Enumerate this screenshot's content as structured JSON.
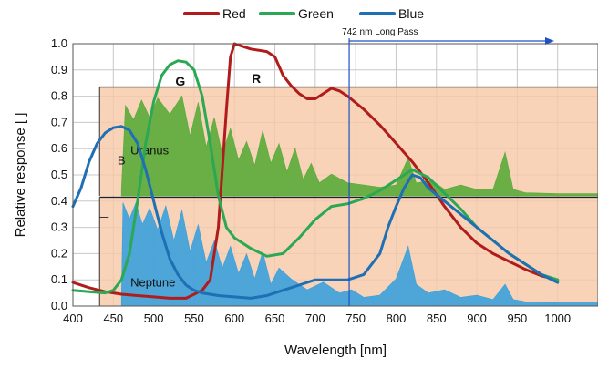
{
  "chart_data": {
    "type": "line",
    "title": "",
    "xlabel": "Wavelength [nm]",
    "ylabel": "Relative response [ ]",
    "xlim": [
      400,
      1050
    ],
    "ylim": [
      0,
      1.0
    ],
    "x_ticks": [
      400,
      450,
      500,
      550,
      600,
      650,
      700,
      750,
      800,
      850,
      900,
      950,
      1000
    ],
    "y_ticks": [
      "0.0",
      "0.1",
      "0.2",
      "0.3",
      "0.4",
      "0.5",
      "0.6",
      "0.7",
      "0.8",
      "0.9",
      "1.0"
    ],
    "grid": true,
    "legend_position": "top-center",
    "series": [
      {
        "name": "Red",
        "color": "#b01c1c",
        "points": [
          [
            400,
            0.09
          ],
          [
            420,
            0.07
          ],
          [
            440,
            0.055
          ],
          [
            460,
            0.045
          ],
          [
            480,
            0.04
          ],
          [
            500,
            0.035
          ],
          [
            520,
            0.03
          ],
          [
            540,
            0.03
          ],
          [
            560,
            0.06
          ],
          [
            570,
            0.1
          ],
          [
            580,
            0.3
          ],
          [
            590,
            0.75
          ],
          [
            595,
            0.95
          ],
          [
            600,
            1.0
          ],
          [
            610,
            0.99
          ],
          [
            620,
            0.98
          ],
          [
            640,
            0.97
          ],
          [
            650,
            0.95
          ],
          [
            660,
            0.88
          ],
          [
            670,
            0.84
          ],
          [
            680,
            0.81
          ],
          [
            690,
            0.79
          ],
          [
            700,
            0.79
          ],
          [
            710,
            0.81
          ],
          [
            720,
            0.83
          ],
          [
            730,
            0.82
          ],
          [
            740,
            0.8
          ],
          [
            760,
            0.75
          ],
          [
            780,
            0.69
          ],
          [
            800,
            0.62
          ],
          [
            820,
            0.55
          ],
          [
            840,
            0.47
          ],
          [
            860,
            0.38
          ],
          [
            880,
            0.3
          ],
          [
            900,
            0.24
          ],
          [
            920,
            0.2
          ],
          [
            940,
            0.17
          ],
          [
            960,
            0.14
          ],
          [
            980,
            0.115
          ],
          [
            1000,
            0.1
          ]
        ]
      },
      {
        "name": "Green",
        "color": "#2aa853",
        "points": [
          [
            400,
            0.06
          ],
          [
            420,
            0.055
          ],
          [
            440,
            0.05
          ],
          [
            450,
            0.06
          ],
          [
            460,
            0.1
          ],
          [
            470,
            0.2
          ],
          [
            480,
            0.4
          ],
          [
            490,
            0.62
          ],
          [
            500,
            0.78
          ],
          [
            510,
            0.88
          ],
          [
            520,
            0.92
          ],
          [
            530,
            0.935
          ],
          [
            540,
            0.93
          ],
          [
            550,
            0.9
          ],
          [
            560,
            0.8
          ],
          [
            570,
            0.62
          ],
          [
            580,
            0.42
          ],
          [
            590,
            0.3
          ],
          [
            600,
            0.26
          ],
          [
            620,
            0.22
          ],
          [
            640,
            0.19
          ],
          [
            660,
            0.2
          ],
          [
            680,
            0.26
          ],
          [
            700,
            0.33
          ],
          [
            720,
            0.38
          ],
          [
            740,
            0.39
          ],
          [
            760,
            0.41
          ],
          [
            780,
            0.44
          ],
          [
            800,
            0.48
          ],
          [
            820,
            0.52
          ],
          [
            840,
            0.49
          ],
          [
            860,
            0.43
          ],
          [
            880,
            0.37
          ],
          [
            900,
            0.3
          ],
          [
            920,
            0.25
          ],
          [
            940,
            0.2
          ],
          [
            960,
            0.16
          ],
          [
            980,
            0.12
          ],
          [
            1000,
            0.1
          ]
        ]
      },
      {
        "name": "Blue",
        "color": "#1f6fb5",
        "points": [
          [
            400,
            0.38
          ],
          [
            410,
            0.45
          ],
          [
            420,
            0.55
          ],
          [
            430,
            0.62
          ],
          [
            440,
            0.66
          ],
          [
            450,
            0.68
          ],
          [
            460,
            0.685
          ],
          [
            470,
            0.67
          ],
          [
            480,
            0.62
          ],
          [
            490,
            0.52
          ],
          [
            500,
            0.4
          ],
          [
            510,
            0.28
          ],
          [
            520,
            0.18
          ],
          [
            530,
            0.12
          ],
          [
            540,
            0.08
          ],
          [
            550,
            0.06
          ],
          [
            560,
            0.05
          ],
          [
            580,
            0.04
          ],
          [
            600,
            0.035
          ],
          [
            620,
            0.03
          ],
          [
            640,
            0.04
          ],
          [
            660,
            0.06
          ],
          [
            680,
            0.08
          ],
          [
            700,
            0.1
          ],
          [
            720,
            0.1
          ],
          [
            740,
            0.1
          ],
          [
            760,
            0.12
          ],
          [
            780,
            0.2
          ],
          [
            790,
            0.3
          ],
          [
            800,
            0.38
          ],
          [
            810,
            0.45
          ],
          [
            820,
            0.5
          ],
          [
            830,
            0.49
          ],
          [
            840,
            0.45
          ],
          [
            860,
            0.4
          ],
          [
            880,
            0.35
          ],
          [
            900,
            0.3
          ],
          [
            920,
            0.25
          ],
          [
            940,
            0.2
          ],
          [
            960,
            0.16
          ],
          [
            980,
            0.12
          ],
          [
            1000,
            0.09
          ]
        ]
      }
    ],
    "annotations": {
      "filter_label": "742 nm Long Pass",
      "filter_wavelength": 742,
      "channel_labels": [
        {
          "text": "G",
          "x": 533,
          "y": 0.84
        },
        {
          "text": "R",
          "x": 627,
          "y": 0.85
        },
        {
          "text": "B",
          "x": 460,
          "y": 0.54
        }
      ],
      "insets": [
        {
          "label": "Uranus",
          "color": "#5aaa3a",
          "panel_x": [
            433,
            1050
          ],
          "panel_y": [
            0.42,
            0.835
          ],
          "spectrum": [
            [
              460,
              0.06
            ],
            [
              465,
              0.83
            ],
            [
              475,
              0.7
            ],
            [
              485,
              0.88
            ],
            [
              495,
              0.72
            ],
            [
              505,
              0.9
            ],
            [
              520,
              0.75
            ],
            [
              535,
              0.92
            ],
            [
              545,
              0.55
            ],
            [
              555,
              0.86
            ],
            [
              565,
              0.45
            ],
            [
              575,
              0.72
            ],
            [
              585,
              0.38
            ],
            [
              595,
              0.62
            ],
            [
              605,
              0.33
            ],
            [
              615,
              0.5
            ],
            [
              625,
              0.28
            ],
            [
              635,
              0.6
            ],
            [
              645,
              0.3
            ],
            [
              655,
              0.48
            ],
            [
              665,
              0.22
            ],
            [
              675,
              0.44
            ],
            [
              685,
              0.15
            ],
            [
              695,
              0.3
            ],
            [
              705,
              0.12
            ],
            [
              720,
              0.2
            ],
            [
              740,
              0.12
            ],
            [
              760,
              0.1
            ],
            [
              780,
              0.08
            ],
            [
              800,
              0.1
            ],
            [
              815,
              0.35
            ],
            [
              825,
              0.12
            ],
            [
              845,
              0.14
            ],
            [
              860,
              0.06
            ],
            [
              880,
              0.1
            ],
            [
              900,
              0.06
            ],
            [
              920,
              0.06
            ],
            [
              935,
              0.4
            ],
            [
              945,
              0.06
            ],
            [
              960,
              0.03
            ],
            [
              1000,
              0.02
            ],
            [
              1050,
              0.02
            ]
          ]
        },
        {
          "label": "Neptune",
          "color": "#3aa0dc",
          "panel_x": [
            433,
            1050
          ],
          "panel_y": [
            0.0,
            0.415
          ],
          "spectrum": [
            [
              460,
              0.05
            ],
            [
              462,
              0.95
            ],
            [
              470,
              0.8
            ],
            [
              478,
              0.95
            ],
            [
              486,
              0.75
            ],
            [
              495,
              0.9
            ],
            [
              505,
              0.7
            ],
            [
              515,
              0.92
            ],
            [
              525,
              0.6
            ],
            [
              535,
              0.88
            ],
            [
              545,
              0.5
            ],
            [
              555,
              0.75
            ],
            [
              565,
              0.4
            ],
            [
              575,
              0.6
            ],
            [
              585,
              0.35
            ],
            [
              595,
              0.55
            ],
            [
              605,
              0.3
            ],
            [
              615,
              0.48
            ],
            [
              625,
              0.25
            ],
            [
              635,
              0.5
            ],
            [
              645,
              0.2
            ],
            [
              655,
              0.35
            ],
            [
              670,
              0.25
            ],
            [
              690,
              0.15
            ],
            [
              710,
              0.22
            ],
            [
              730,
              0.12
            ],
            [
              745,
              0.15
            ],
            [
              760,
              0.08
            ],
            [
              780,
              0.1
            ],
            [
              800,
              0.25
            ],
            [
              815,
              0.55
            ],
            [
              825,
              0.2
            ],
            [
              840,
              0.12
            ],
            [
              860,
              0.15
            ],
            [
              880,
              0.08
            ],
            [
              900,
              0.1
            ],
            [
              920,
              0.06
            ],
            [
              935,
              0.2
            ],
            [
              945,
              0.06
            ],
            [
              960,
              0.04
            ],
            [
              1000,
              0.03
            ],
            [
              1050,
              0.03
            ]
          ]
        }
      ]
    }
  }
}
